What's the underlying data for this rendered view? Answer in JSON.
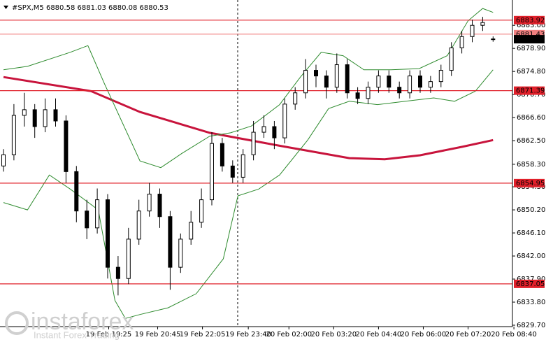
{
  "chart_data": {
    "type": "candlestick",
    "title": "#SPX,M5  6880.58 6881.03 6880.08 6880.53",
    "candles": {
      "open": [
        6858,
        6860,
        6867,
        6868,
        6865,
        6868,
        6866,
        6857,
        6850,
        6847,
        6852,
        6840,
        6838,
        6845,
        6850,
        6853,
        6849,
        6840,
        6845,
        6848,
        6852,
        6862,
        6858,
        6856,
        6860,
        6864,
        6865,
        6863,
        6869,
        6871,
        6875,
        6874,
        6872,
        6876,
        6871,
        6870,
        6872,
        6874,
        6872,
        6871,
        6874,
        6872,
        6873,
        6875,
        6879,
        6881,
        6883,
        6880.58
      ],
      "high": [
        6861,
        6869,
        6871,
        6869,
        6870,
        6870,
        6867,
        6858,
        6852,
        6854,
        6853,
        6842,
        6847,
        6852,
        6855,
        6854,
        6850,
        6846,
        6850,
        6854,
        6864,
        6863,
        6859,
        6861,
        6866,
        6867,
        6866,
        6870,
        6872,
        6877,
        6876,
        6875,
        6878,
        6877,
        6872,
        6873,
        6875,
        6875,
        6873,
        6875,
        6875,
        6874,
        6876,
        6880,
        6882,
        6884,
        6884.5,
        6881.03
      ],
      "low": [
        6857,
        6859,
        6865,
        6863,
        6864,
        6865,
        6855,
        6848,
        6845,
        6846,
        6838,
        6835,
        6837,
        6844,
        6849,
        6847,
        6836,
        6839,
        6844,
        6847,
        6851,
        6857,
        6855,
        6855,
        6859,
        6863,
        6861,
        6862,
        6868,
        6870,
        6872,
        6870,
        6871,
        6870,
        6869,
        6869,
        6871,
        6871,
        6870,
        6870,
        6871,
        6871,
        6872,
        6874,
        6878,
        6880,
        6882,
        6880.08
      ],
      "close": [
        6860,
        6867,
        6868,
        6865,
        6868,
        6866,
        6857,
        6850,
        6847,
        6852,
        6840,
        6838,
        6845,
        6850,
        6853,
        6849,
        6840,
        6845,
        6848,
        6852,
        6862,
        6858,
        6856,
        6860,
        6864,
        6865,
        6863,
        6869,
        6871,
        6875,
        6874,
        6872,
        6876,
        6871,
        6870,
        6872,
        6874,
        6872,
        6871,
        6874,
        6872,
        6873,
        6875,
        6879,
        6881,
        6883,
        6883.5,
        6880.53
      ]
    },
    "overlays": [
      {
        "color": "#c8143c",
        "width": 3,
        "x": [
          0,
          8.4,
          13.1,
          19.8,
          26.5,
          33.2,
          36.6,
          40,
          44,
          47
        ],
        "values": [
          6873.8,
          6871.3,
          6867.6,
          6863.9,
          6861.6,
          6859.4,
          6859.2,
          6859.9,
          6861.4,
          6862.6
        ]
      },
      {
        "color": "#2e8b2e",
        "width": 1,
        "x": [
          0,
          2.3,
          6.4,
          8.1,
          9.7,
          13.1,
          15.1,
          17.1,
          19.8,
          21.8,
          23.8,
          26.5,
          28.5,
          30.5,
          32.6,
          34.6,
          37.2,
          39.9,
          42.6,
          44.6,
          46,
          47
        ],
        "values": [
          6875.1,
          6875.7,
          6878.2,
          6879.4,
          6872.6,
          6858.9,
          6857.7,
          6860.2,
          6863.3,
          6863.9,
          6865.1,
          6868.9,
          6873.8,
          6878.2,
          6877.6,
          6875.1,
          6875.1,
          6875.3,
          6877.6,
          6883.8,
          6886.0,
          6885.3
        ]
      },
      {
        "color": "#2e8b2e",
        "width": 1,
        "x": [
          0,
          2.3,
          4.4,
          6.4,
          9.1,
          10.7,
          11.7,
          13.1,
          15.8,
          18.5,
          21.1,
          22.5,
          24.5,
          26.5,
          29.2,
          31.2,
          33.2,
          35.9,
          38.6,
          41.3,
          43.3,
          45.3,
          47
        ],
        "values": [
          6851.5,
          6850.2,
          6856.4,
          6853.9,
          6850.2,
          6834.1,
          6830.9,
          6831.6,
          6832.8,
          6835.3,
          6841.5,
          6852.7,
          6853.9,
          6856.4,
          6862.6,
          6868.2,
          6869.5,
          6868.9,
          6869.5,
          6870.1,
          6869.5,
          6871.3,
          6875.1
        ]
      }
    ],
    "levels": [
      {
        "value": 6883.92,
        "color": "#e0202a",
        "tag_text": "#ffffff"
      },
      {
        "value": 6881.43,
        "color": "#f08080",
        "tag_text": "#ffffff"
      },
      {
        "value": 6880.53,
        "color": "#000000",
        "tag_text": "#ffffff"
      },
      {
        "value": 6871.39,
        "color": "#e0202a",
        "tag_text": "#ffffff"
      },
      {
        "value": 6854.95,
        "color": "#e0202a",
        "tag_text": "#ffffff"
      },
      {
        "value": 6837.05,
        "color": "#e0202a",
        "tag_text": "#ffffff"
      }
    ],
    "ylim": [
      6829.7,
      6887.5
    ],
    "yticks": [
      {
        "value": 6883.0,
        "label": "6883.00"
      },
      {
        "value": 6878.9,
        "label": "6878.90"
      },
      {
        "value": 6874.8,
        "label": "6874.80"
      },
      {
        "value": 6870.7,
        "label": "6870.70"
      },
      {
        "value": 6866.6,
        "label": "6866.60"
      },
      {
        "value": 6862.5,
        "label": "6862.50"
      },
      {
        "value": 6858.3,
        "label": "6858.30"
      },
      {
        "value": 6854.3,
        "label": "6854.30"
      },
      {
        "value": 6850.2,
        "label": "6850.20"
      },
      {
        "value": 6846.1,
        "label": "6846.10"
      },
      {
        "value": 6842.0,
        "label": "6842.00"
      },
      {
        "value": 6837.9,
        "label": "6837.90"
      },
      {
        "value": 6833.8,
        "label": "6833.80"
      },
      {
        "value": 6829.7,
        "label": "6829.70"
      }
    ],
    "xticks": [
      {
        "value": 10.1,
        "label": "19 Feb 19:25"
      },
      {
        "value": 14.8,
        "label": "19 Feb 20:45"
      },
      {
        "value": 19.1,
        "label": "19 Feb 22:05"
      },
      {
        "value": 23.5,
        "label": "19 Feb 23:40"
      },
      {
        "value": 27.4,
        "label": "20 Feb 02:00"
      },
      {
        "value": 31.7,
        "label": "20 Feb 03:20"
      },
      {
        "value": 36,
        "label": "20 Feb 04:40"
      },
      {
        "value": 40.3,
        "label": "20 Feb 06:00"
      },
      {
        "value": 44.6,
        "label": "20 Feb 07:20"
      },
      {
        "value": 49,
        "label": "20 Feb 08:40"
      }
    ]
  },
  "watermark": {
    "brand": "instaforex",
    "tagline": "Instant Forex Trading"
  }
}
